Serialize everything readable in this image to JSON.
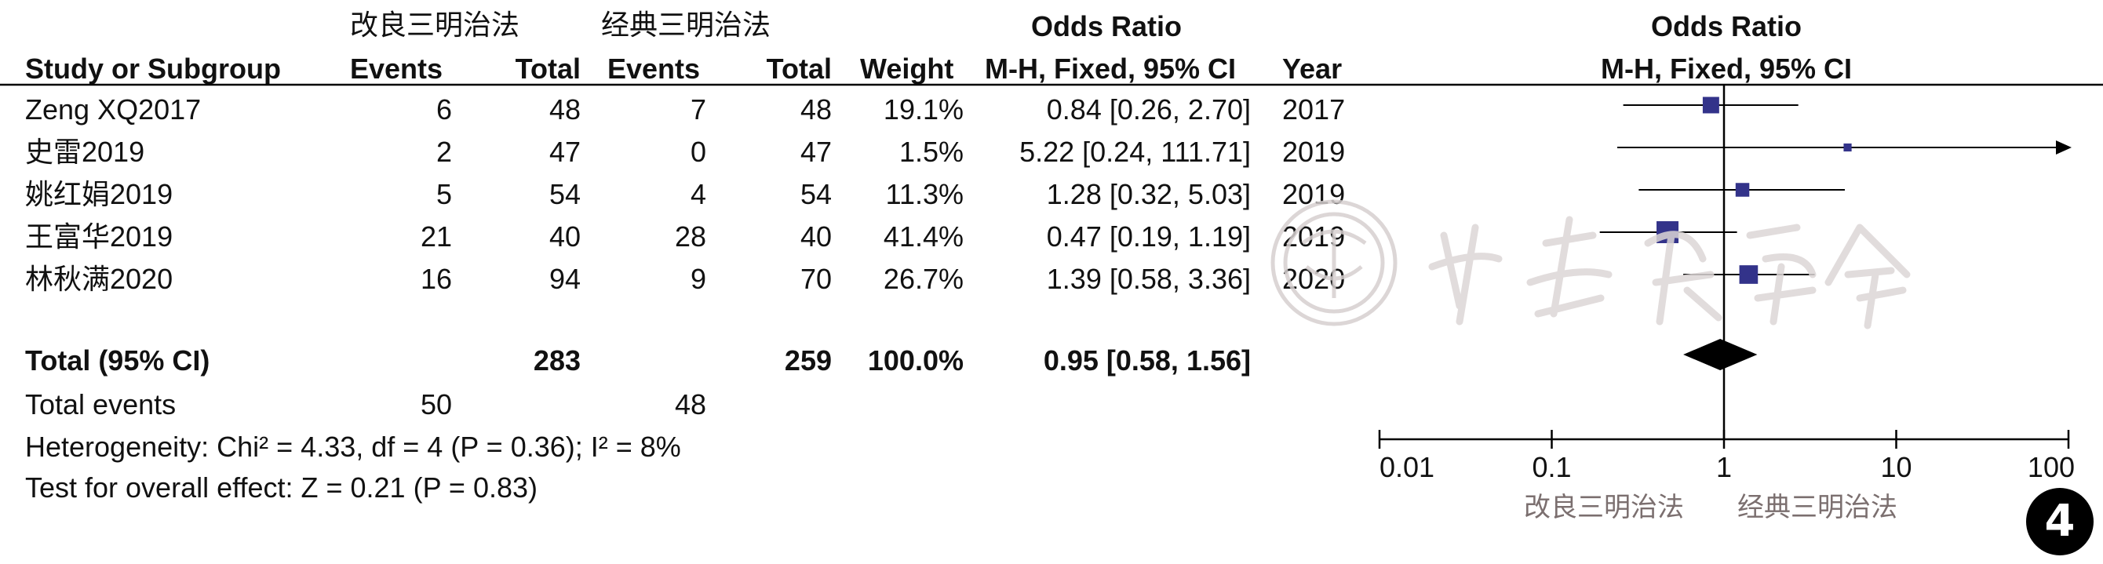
{
  "header": {
    "group_experimental": "改良三明治法",
    "group_control": "经典三明治法",
    "study_col": "Study or Subgroup",
    "events": "Events",
    "total": "Total",
    "weight": "Weight",
    "or_title": "Odds Ratio",
    "or_method": "M-H, Fixed, 95% CI",
    "year": "Year"
  },
  "studies": [
    {
      "name": "Zeng XQ2017",
      "e_events": "6",
      "e_total": "48",
      "c_events": "7",
      "c_total": "48",
      "weight": "19.1%",
      "ci_text": "0.84 [0.26, 2.70]",
      "year": "2017"
    },
    {
      "name": "史雷2019",
      "e_events": "2",
      "e_total": "47",
      "c_events": "0",
      "c_total": "47",
      "weight": "1.5%",
      "ci_text": "5.22 [0.24, 111.71]",
      "year": "2019"
    },
    {
      "name": "姚红娟2019",
      "e_events": "5",
      "e_total": "54",
      "c_events": "4",
      "c_total": "54",
      "weight": "11.3%",
      "ci_text": "1.28 [0.32, 5.03]",
      "year": "2019"
    },
    {
      "name": "王富华2019",
      "e_events": "21",
      "e_total": "40",
      "c_events": "28",
      "c_total": "40",
      "weight": "41.4%",
      "ci_text": "0.47 [0.19, 1.19]",
      "year": "2019"
    },
    {
      "name": "林秋满2020",
      "e_events": "16",
      "e_total": "94",
      "c_events": "9",
      "c_total": "70",
      "weight": "26.7%",
      "ci_text": "1.39 [0.58, 3.36]",
      "year": "2020"
    }
  ],
  "total": {
    "label": "Total (95% CI)",
    "e_total": "283",
    "c_total": "259",
    "weight": "100.0%",
    "ci_text": "0.95 [0.58, 1.56]"
  },
  "total_events": {
    "label": "Total events",
    "e_events": "50",
    "c_events": "48"
  },
  "heterogeneity": "Heterogeneity: Chi² = 4.33, df = 4 (P = 0.36); I² = 8%",
  "overall_effect": "Test for overall effect: Z = 0.21 (P = 0.83)",
  "axis": {
    "ticks": [
      "0.01",
      "0.1",
      "1",
      "10",
      "100"
    ],
    "favours_left": "改良三明治法",
    "favours_right": "经典三明治法"
  },
  "badge": "4",
  "watermark": "中华医学会",
  "colors": {
    "marker": "#33338a",
    "line": "#000000",
    "favours": "#7b6f6f"
  },
  "chart_data": {
    "type": "forest",
    "x_scale": "log",
    "xlim": [
      0.01,
      100
    ],
    "x_ticks": [
      0.01,
      0.1,
      1,
      10,
      100
    ],
    "categories": [
      "Zeng XQ2017",
      "史雷2019",
      "姚红娟2019",
      "王富华2019",
      "林秋满2020"
    ],
    "or": [
      0.84,
      5.22,
      1.28,
      0.47,
      1.39
    ],
    "ci_low": [
      0.26,
      0.24,
      0.32,
      0.19,
      0.58
    ],
    "ci_high": [
      2.7,
      111.71,
      5.03,
      1.19,
      3.36
    ],
    "weights": [
      19.1,
      1.5,
      11.3,
      41.4,
      26.7
    ],
    "pooled": {
      "or": 0.95,
      "ci_low": 0.58,
      "ci_high": 1.56
    }
  }
}
